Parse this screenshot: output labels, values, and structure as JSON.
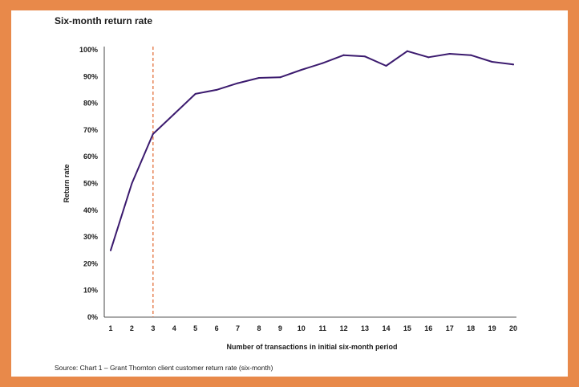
{
  "chart_data": {
    "type": "line",
    "title": "Six-month return rate",
    "xlabel": "Number of transactions in initial six-month period",
    "ylabel": "Return rate",
    "x": [
      1,
      2,
      3,
      4,
      5,
      6,
      7,
      8,
      9,
      10,
      11,
      12,
      13,
      14,
      15,
      16,
      17,
      18,
      19,
      20
    ],
    "series": [
      {
        "values": [
          25,
          50,
          68.5,
          76,
          83.5,
          85,
          87.5,
          89.5,
          89.7,
          92.5,
          95,
          98,
          97.5,
          94,
          99.5,
          97.2,
          98.5,
          98,
          95.5,
          94.5
        ]
      }
    ],
    "y_ticks": [
      "0%",
      "10%",
      "20%",
      "30%",
      "40%",
      "50%",
      "60%",
      "70%",
      "80%",
      "90%",
      "100%"
    ],
    "ylim": [
      0,
      100
    ],
    "reference_line": {
      "x": 3,
      "style": "dashed",
      "color": "#e0642b"
    },
    "line_color": "#3b1a6e",
    "grid": false
  },
  "source": "Source: Chart 1 – Grant Thornton client customer return rate (six-month)",
  "colors": {
    "border": "#e8894a",
    "background": "#ffffff"
  }
}
